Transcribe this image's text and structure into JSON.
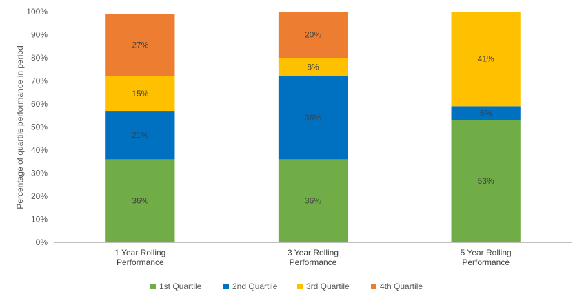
{
  "chart_data": {
    "type": "bar",
    "stacked": true,
    "categories": [
      "1 Year Rolling Performance",
      "3 Year Rolling Performance",
      "5 Year Rolling Performance"
    ],
    "category_lines": [
      [
        "1 Year Rolling",
        "Performance"
      ],
      [
        "3 Year Rolling",
        "Performance"
      ],
      [
        "5 Year Rolling",
        "Performance"
      ]
    ],
    "ylabel": "Percentage of quartile performance in period",
    "ylim": [
      0,
      100
    ],
    "yticks": [
      0,
      10,
      20,
      30,
      40,
      50,
      60,
      70,
      80,
      90,
      100
    ],
    "ytick_labels": [
      "0%",
      "10%",
      "20%",
      "30%",
      "40%",
      "50%",
      "60%",
      "70%",
      "80%",
      "90%",
      "100%"
    ],
    "legend_position": "bottom",
    "series": [
      {
        "name": "1st Quartile",
        "color": "#70ad47",
        "values": [
          36,
          36,
          53
        ],
        "labels": [
          "36%",
          "36%",
          "53%"
        ]
      },
      {
        "name": "2nd Quartile",
        "color": "#0070c0",
        "values": [
          21,
          36,
          6
        ],
        "labels": [
          "21%",
          "36%",
          "6%"
        ]
      },
      {
        "name": "3rd Quartile",
        "color": "#ffc000",
        "values": [
          15,
          8,
          41
        ],
        "labels": [
          "15%",
          "8%",
          "41%"
        ]
      },
      {
        "name": "4th Quartile",
        "color": "#ed7d31",
        "values": [
          27,
          20,
          0
        ],
        "labels": [
          "27%",
          "20%",
          ""
        ]
      }
    ]
  }
}
